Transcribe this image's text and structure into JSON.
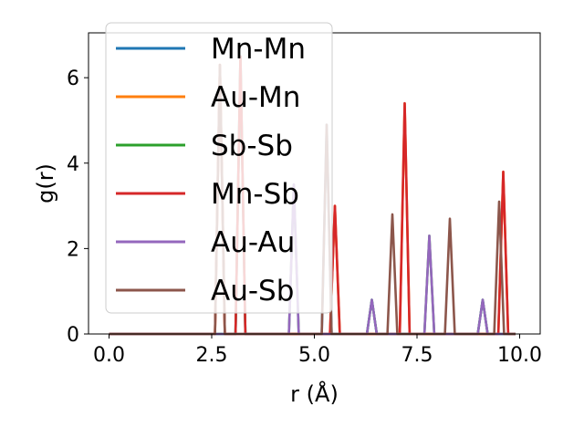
{
  "chart_data": {
    "type": "line",
    "xlabel": "r (Å)",
    "ylabel": "g(r)",
    "xlim": [
      -0.5,
      10.5
    ],
    "ylim": [
      0,
      7.05
    ],
    "xticks": [
      0.0,
      2.5,
      5.0,
      7.5,
      10.0
    ],
    "xtick_labels": [
      "0.0",
      "2.5",
      "5.0",
      "7.5",
      "10.0"
    ],
    "yticks": [
      0,
      2,
      4,
      6
    ],
    "ytick_labels": [
      "0",
      "2",
      "4",
      "6"
    ],
    "grid": false,
    "legend_position": "top-left",
    "x_range": [
      0,
      9.9
    ],
    "peak_halfwidth": 0.12,
    "series": [
      {
        "name": "Mn-Mn",
        "color": "#1f77b4",
        "peaks": [
          [
            3.2,
            6.5
          ],
          [
            5.3,
            4.9
          ],
          [
            6.4,
            0.8
          ],
          [
            9.1,
            0.8
          ]
        ]
      },
      {
        "name": "Au-Mn",
        "color": "#ff7f0e",
        "peaks": [
          [
            2.7,
            6.3
          ],
          [
            5.5,
            3.0
          ],
          [
            7.2,
            5.4
          ],
          [
            9.6,
            3.8
          ]
        ]
      },
      {
        "name": "Sb-Sb",
        "color": "#2ca02c",
        "peaks": [
          [
            3.2,
            6.5
          ],
          [
            4.5,
            3.5
          ],
          [
            6.4,
            0.8
          ],
          [
            7.8,
            2.3
          ],
          [
            9.1,
            0.8
          ]
        ]
      },
      {
        "name": "Mn-Sb",
        "color": "#d62728",
        "peaks": [
          [
            2.7,
            6.3
          ],
          [
            3.2,
            6.5
          ],
          [
            5.5,
            3.0
          ],
          [
            7.2,
            5.4
          ],
          [
            9.6,
            3.8
          ]
        ]
      },
      {
        "name": "Au-Au",
        "color": "#9467bd",
        "peaks": [
          [
            4.5,
            3.5
          ],
          [
            6.4,
            0.8
          ],
          [
            7.8,
            2.3
          ],
          [
            9.1,
            0.8
          ]
        ]
      },
      {
        "name": "Au-Sb",
        "color": "#8c564b",
        "peaks": [
          [
            2.7,
            6.3
          ],
          [
            5.3,
            4.9
          ],
          [
            6.9,
            2.8
          ],
          [
            8.3,
            2.7
          ],
          [
            9.5,
            3.1
          ]
        ]
      }
    ]
  }
}
